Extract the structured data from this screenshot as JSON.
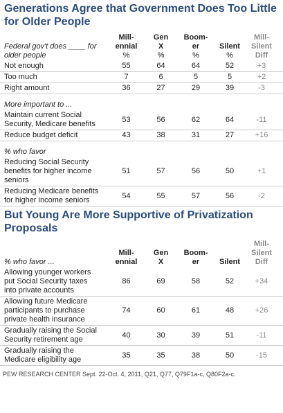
{
  "sections": [
    {
      "title": "Generations Agree that Government Does Too Little for Older People",
      "stub": "Federal gov't does ____ for\nolder people",
      "columns": [
        {
          "name": "Mill-\nennial",
          "unit": "%"
        },
        {
          "name": "Gen\nX",
          "unit": "%"
        },
        {
          "name": "Boom-\ner",
          "unit": "%"
        },
        {
          "name": "Silent",
          "unit": "%"
        }
      ],
      "diff_header": "Mill-\nSilent\nDiff",
      "rows": [
        {
          "label": "Not enough",
          "values": [
            55,
            64,
            64,
            52
          ],
          "diff": "+3"
        },
        {
          "label": "Too much",
          "values": [
            7,
            6,
            5,
            5
          ],
          "diff": "+2"
        },
        {
          "label": "Right amount",
          "values": [
            36,
            27,
            29,
            39
          ],
          "diff": "-3"
        },
        {
          "label": "More important to ...",
          "italic": true
        },
        {
          "label": "Maintain current Social\nSecurity, Medicare benefits",
          "values": [
            53,
            56,
            62,
            64
          ],
          "diff": "-11"
        },
        {
          "label": "Reduce budget deficit",
          "values": [
            43,
            38,
            31,
            27
          ],
          "diff": "+16"
        },
        {
          "label": "% who favor",
          "italic": true
        },
        {
          "label": "Reducing Social Security\nbenefits for higher income\nseniors",
          "values": [
            51,
            57,
            56,
            50
          ],
          "diff": "+1"
        },
        {
          "label": "Reducing Medicare benefits\nfor higher income seniors",
          "values": [
            54,
            55,
            57,
            56
          ],
          "diff": "-2"
        }
      ]
    },
    {
      "title": "But Young Are More Supportive of Privatization Proposals",
      "stub": "% who favor ...",
      "columns": [
        {
          "name": "Mill-\nennial"
        },
        {
          "name": "Gen\nX"
        },
        {
          "name": "Boom-\ner"
        },
        {
          "name": "Silent"
        }
      ],
      "diff_header": "Mill-\nSilent\nDiff",
      "rows": [
        {
          "label": "Allowing younger workers\nput Social Security taxes\ninto private accounts",
          "values": [
            86,
            69,
            58,
            52
          ],
          "diff": "+34"
        },
        {
          "label": "Allowing future Medicare\nparticipants to purchase\nprivate health insurance",
          "values": [
            74,
            60,
            61,
            48
          ],
          "diff": "+26"
        },
        {
          "label": "Gradually raising the Social\nSecurity retirement age",
          "values": [
            40,
            30,
            39,
            51
          ],
          "diff": "-11"
        },
        {
          "label": "Gradually raising the\nMedicare eligibility age",
          "values": [
            35,
            35,
            38,
            50
          ],
          "diff": "-15"
        }
      ]
    }
  ],
  "footer": "PEW RESEARCH CENTER Sept. 22-Oct. 4, 2011, Q21, Q77, Q79F1a-c, Q80F2a-c."
}
